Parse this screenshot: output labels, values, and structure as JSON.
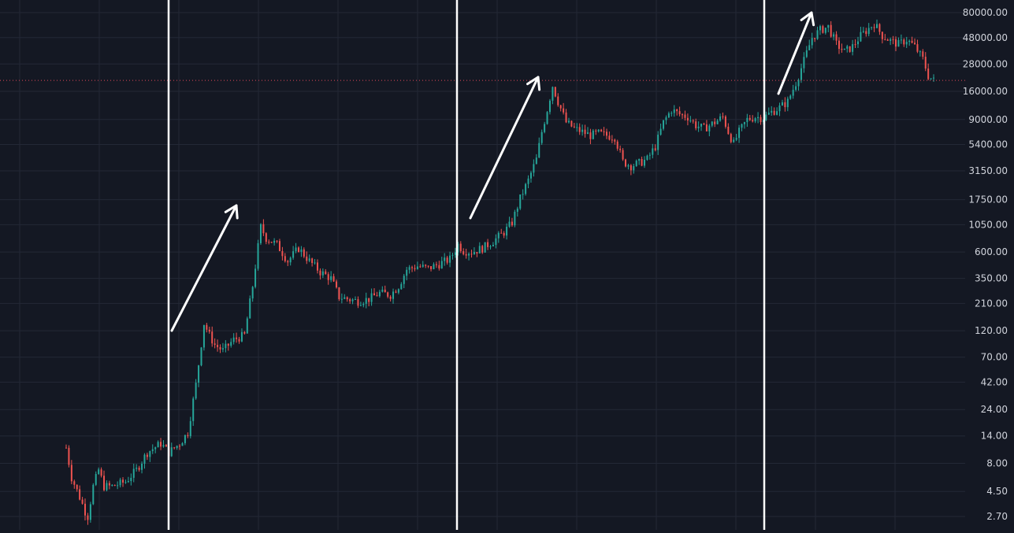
{
  "colors": {
    "background": "#141823",
    "grid": "#232836",
    "up": "#26a69a",
    "down": "#ef5350",
    "axis_text": "#d1d4dc",
    "annotation": "#ffffff",
    "hline": "#e0475a"
  },
  "chart_data": {
    "type": "candlestick",
    "scale": "log",
    "y_axis_side": "right",
    "grid": true,
    "ylim": [
      2.3,
      95000
    ],
    "y_ticks": [
      {
        "value": 80000,
        "label": "80000.00"
      },
      {
        "value": 48000,
        "label": "48000.00"
      },
      {
        "value": 28000,
        "label": "28000.00"
      },
      {
        "value": 16000,
        "label": "16000.00"
      },
      {
        "value": 9000,
        "label": "9000.00"
      },
      {
        "value": 5400,
        "label": "5400.00"
      },
      {
        "value": 3150,
        "label": "3150.00"
      },
      {
        "value": 1750,
        "label": "1750.00"
      },
      {
        "value": 1050,
        "label": "1050.00"
      },
      {
        "value": 600,
        "label": "600.00"
      },
      {
        "value": 350,
        "label": "350.00"
      },
      {
        "value": 210,
        "label": "210.00"
      },
      {
        "value": 120,
        "label": "120.00"
      },
      {
        "value": 70,
        "label": "70.00"
      },
      {
        "value": 42,
        "label": "42.00"
      },
      {
        "value": 24,
        "label": "24.00"
      },
      {
        "value": 14,
        "label": "14.00"
      },
      {
        "value": 8,
        "label": "8.00"
      },
      {
        "value": 4.5,
        "label": "4.50"
      },
      {
        "value": 2.7,
        "label": "2.70"
      }
    ],
    "price_path": [
      [
        0,
        11
      ],
      [
        2,
        6
      ],
      [
        5,
        4
      ],
      [
        7,
        3
      ],
      [
        8,
        2.7
      ],
      [
        10,
        5
      ],
      [
        12,
        7
      ],
      [
        14,
        5
      ],
      [
        17,
        5
      ],
      [
        22,
        5.5
      ],
      [
        26,
        7
      ],
      [
        30,
        10
      ],
      [
        35,
        12
      ],
      [
        38,
        10
      ],
      [
        42,
        12
      ],
      [
        45,
        15
      ],
      [
        48,
        40
      ],
      [
        51,
        140
      ],
      [
        53,
        110
      ],
      [
        55,
        90
      ],
      [
        58,
        80
      ],
      [
        62,
        100
      ],
      [
        66,
        110
      ],
      [
        69,
        300
      ],
      [
        72,
        1000
      ],
      [
        74,
        800
      ],
      [
        78,
        700
      ],
      [
        82,
        500
      ],
      [
        86,
        650
      ],
      [
        90,
        500
      ],
      [
        94,
        400
      ],
      [
        98,
        350
      ],
      [
        101,
        240
      ],
      [
        104,
        230
      ],
      [
        108,
        220
      ],
      [
        112,
        230
      ],
      [
        116,
        260
      ],
      [
        120,
        250
      ],
      [
        123,
        300
      ],
      [
        126,
        420
      ],
      [
        130,
        450
      ],
      [
        134,
        430
      ],
      [
        138,
        470
      ],
      [
        142,
        520
      ],
      [
        145,
        700
      ],
      [
        147,
        620
      ],
      [
        150,
        600
      ],
      [
        154,
        650
      ],
      [
        158,
        750
      ],
      [
        162,
        900
      ],
      [
        165,
        1100
      ],
      [
        168,
        1800
      ],
      [
        171,
        2600
      ],
      [
        174,
        4000
      ],
      [
        176,
        7000
      ],
      [
        178,
        11000
      ],
      [
        180,
        18000
      ],
      [
        182,
        13000
      ],
      [
        185,
        8500
      ],
      [
        188,
        7500
      ],
      [
        191,
        7000
      ],
      [
        194,
        6500
      ],
      [
        197,
        6800
      ],
      [
        200,
        6500
      ],
      [
        203,
        6300
      ],
      [
        206,
        3800
      ],
      [
        209,
        3500
      ],
      [
        212,
        3700
      ],
      [
        215,
        4000
      ],
      [
        218,
        5200
      ],
      [
        221,
        8500
      ],
      [
        224,
        11000
      ],
      [
        227,
        10000
      ],
      [
        230,
        9500
      ],
      [
        233,
        8000
      ],
      [
        236,
        7500
      ],
      [
        240,
        8500
      ],
      [
        243,
        9500
      ],
      [
        245,
        7000
      ],
      [
        247,
        5500
      ],
      [
        249,
        7000
      ],
      [
        252,
        9000
      ],
      [
        255,
        9500
      ],
      [
        258,
        9300
      ],
      [
        261,
        10500
      ],
      [
        264,
        11500
      ],
      [
        267,
        13000
      ],
      [
        270,
        19000
      ],
      [
        273,
        30000
      ],
      [
        276,
        48000
      ],
      [
        279,
        56000
      ],
      [
        282,
        60000
      ],
      [
        285,
        42000
      ],
      [
        288,
        36000
      ],
      [
        291,
        40000
      ],
      [
        294,
        50000
      ],
      [
        297,
        58000
      ],
      [
        299,
        64000
      ],
      [
        302,
        50000
      ],
      [
        305,
        45000
      ],
      [
        308,
        42000
      ],
      [
        311,
        46000
      ],
      [
        314,
        40000
      ],
      [
        317,
        31000
      ],
      [
        319,
        22000
      ],
      [
        321,
        20000
      ]
    ]
  },
  "annotations": {
    "vertical_lines": [
      "cycle-divider-1",
      "cycle-divider-2",
      "cycle-divider-3"
    ],
    "horizontal_line_value": 20000,
    "arrows": [
      "rally-arrow-1",
      "rally-arrow-2",
      "rally-arrow-3"
    ]
  }
}
